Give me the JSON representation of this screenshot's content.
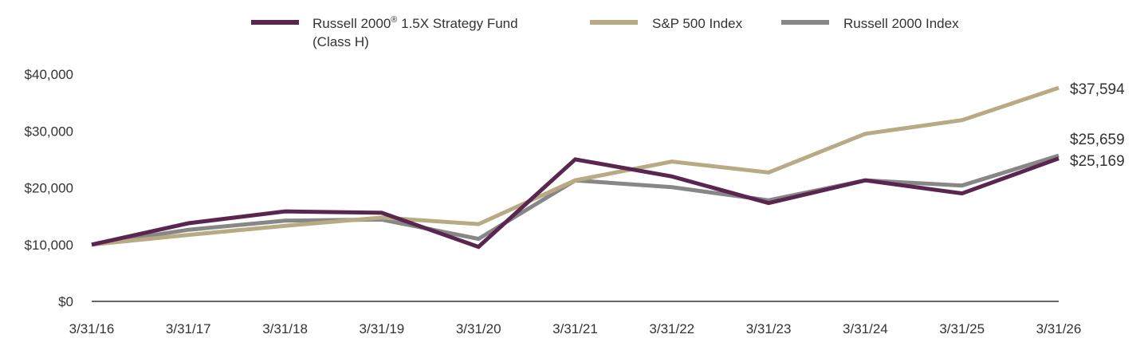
{
  "chart_data": {
    "type": "line",
    "categories": [
      "3/31/16",
      "3/31/17",
      "3/31/18",
      "3/31/19",
      "3/31/20",
      "3/31/21",
      "3/31/22",
      "3/31/23",
      "3/31/24",
      "3/31/25",
      "3/31/26"
    ],
    "ylim": [
      0,
      40000
    ],
    "y_ticks": [
      "$0",
      "$10,000",
      "$20,000",
      "$30,000",
      "$40,000"
    ],
    "y_tick_values": [
      0,
      10000,
      20000,
      30000,
      40000
    ],
    "legend_placement": "top",
    "grid": false,
    "series": [
      {
        "name_line1": "Russell 2000",
        "name_sup": "®",
        "name_line1_rest": " 1.5X Strategy Fund",
        "name_line2": "(Class H)",
        "color": "#5a2650",
        "values": [
          10000,
          13750,
          15850,
          15600,
          9600,
          25000,
          22000,
          17300,
          21300,
          19000,
          25169
        ],
        "end_label": "$25,169"
      },
      {
        "name": "S&P 500 Index",
        "color": "#b8aa82",
        "values": [
          10000,
          11700,
          13300,
          14750,
          13600,
          21300,
          24600,
          22700,
          29500,
          31900,
          37594
        ],
        "end_label": "$37,594"
      },
      {
        "name": "Russell 2000 Index",
        "color": "#878787",
        "values": [
          10000,
          12600,
          14200,
          14400,
          11000,
          21300,
          20100,
          17800,
          21300,
          20400,
          25659
        ],
        "end_label": "$25,659"
      }
    ]
  }
}
